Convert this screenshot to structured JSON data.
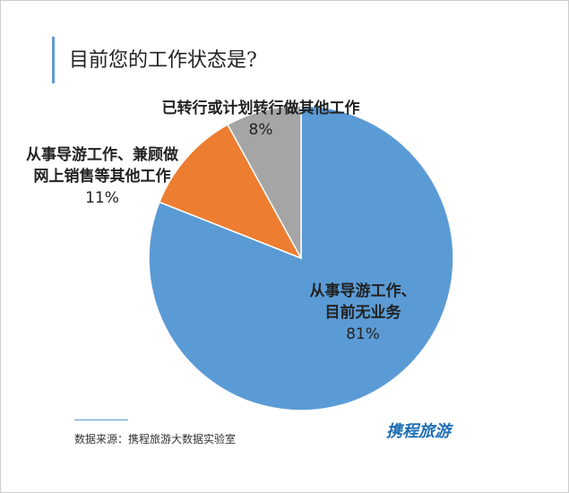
{
  "chart_data": {
    "type": "pie",
    "title": "目前您的工作状态是?",
    "categories": [
      "从事导游工作、目前无业务",
      "从事导游工作、兼顾做网上销售等其他工作",
      "已转行或计划转行做其他工作"
    ],
    "values": [
      81,
      11,
      8
    ],
    "value_labels": [
      "81%",
      "11%",
      "8%"
    ],
    "colors": [
      "#5b9bd5",
      "#ed7d31",
      "#a5a5a5"
    ]
  },
  "source": "数据来源：携程旅游大数据实验室",
  "logo": "携程旅游"
}
